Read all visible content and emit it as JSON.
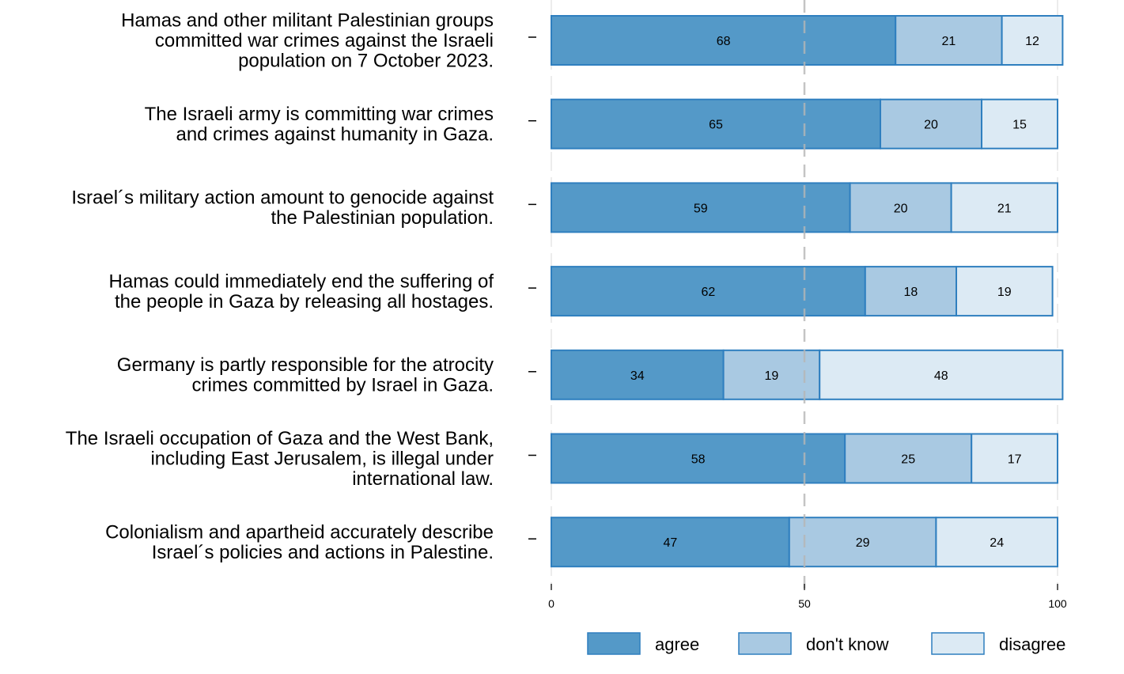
{
  "chart_data": {
    "type": "bar",
    "orientation": "horizontal",
    "stacked": true,
    "title": "",
    "xlabel": "",
    "ylabel": "",
    "xlim": [
      0,
      100
    ],
    "xticks": [
      0,
      50,
      100
    ],
    "reference_line": {
      "value": 50,
      "style": "dashed"
    },
    "grid": false,
    "legend_position": "bottom",
    "categories": [
      [
        "Hamas and other militant Palestinian groups",
        "committed war crimes against the Israeli",
        "population on 7 October 2023."
      ],
      [
        "The Israeli army is committing war crimes",
        "and crimes against humanity in Gaza."
      ],
      [
        "Israel´s military action amount to genocide against",
        "the Palestinian population."
      ],
      [
        "Hamas could immediately end the suffering of",
        "the people in Gaza by releasing all hostages."
      ],
      [
        "Germany is partly responsible for the atrocity",
        "crimes committed by Israel in Gaza."
      ],
      [
        "The Israeli occupation of Gaza and the West Bank,",
        "including East Jerusalem, is illegal under",
        "international law."
      ],
      [
        "Colonialism and apartheid accurately describe",
        "Israel´s policies and actions in Palestine."
      ]
    ],
    "series": [
      {
        "name": "agree",
        "color": "#5499c8",
        "values": [
          68,
          65,
          59,
          62,
          34,
          58,
          47
        ]
      },
      {
        "name": "don't know",
        "color": "#a9c9e2",
        "values": [
          21,
          20,
          20,
          18,
          19,
          25,
          29
        ]
      },
      {
        "name": "disagree",
        "color": "#dceaf4",
        "values": [
          12,
          15,
          21,
          19,
          48,
          17,
          24
        ]
      }
    ],
    "edge_color": "#2f7fbf",
    "legend": [
      "agree",
      "don't know",
      "disagree"
    ]
  }
}
